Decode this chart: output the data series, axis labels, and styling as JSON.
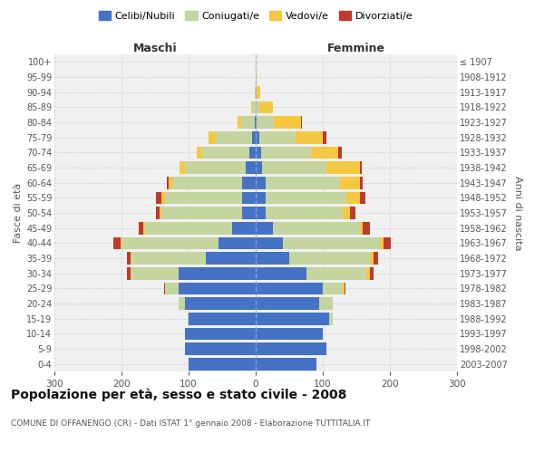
{
  "age_groups": [
    "0-4",
    "5-9",
    "10-14",
    "15-19",
    "20-24",
    "25-29",
    "30-34",
    "35-39",
    "40-44",
    "45-49",
    "50-54",
    "55-59",
    "60-64",
    "65-69",
    "70-74",
    "75-79",
    "80-84",
    "85-89",
    "90-94",
    "95-99",
    "100+"
  ],
  "birth_years": [
    "2003-2007",
    "1998-2002",
    "1993-1997",
    "1988-1992",
    "1983-1987",
    "1978-1982",
    "1973-1977",
    "1968-1972",
    "1963-1967",
    "1958-1962",
    "1953-1957",
    "1948-1952",
    "1943-1947",
    "1938-1942",
    "1933-1937",
    "1928-1932",
    "1923-1927",
    "1918-1922",
    "1913-1917",
    "1908-1912",
    "≤ 1907"
  ],
  "maschi": {
    "celibi": [
      100,
      105,
      105,
      100,
      105,
      115,
      115,
      75,
      55,
      35,
      20,
      20,
      20,
      15,
      10,
      5,
      2,
      0,
      0,
      0,
      0
    ],
    "coniugati": [
      0,
      0,
      0,
      2,
      10,
      20,
      70,
      110,
      145,
      130,
      120,
      115,
      105,
      90,
      70,
      55,
      20,
      5,
      2,
      0,
      0
    ],
    "vedovi": [
      0,
      0,
      0,
      0,
      0,
      0,
      2,
      2,
      2,
      2,
      3,
      5,
      5,
      8,
      8,
      10,
      5,
      2,
      0,
      0,
      0
    ],
    "divorziati": [
      0,
      0,
      0,
      0,
      0,
      2,
      5,
      5,
      10,
      8,
      5,
      8,
      3,
      0,
      0,
      0,
      0,
      0,
      0,
      0,
      0
    ]
  },
  "femmine": {
    "nubili": [
      90,
      105,
      100,
      110,
      95,
      100,
      75,
      50,
      40,
      25,
      15,
      15,
      15,
      10,
      8,
      5,
      2,
      0,
      0,
      0,
      0
    ],
    "coniugate": [
      0,
      0,
      0,
      5,
      20,
      30,
      90,
      120,
      145,
      130,
      115,
      120,
      110,
      95,
      75,
      55,
      25,
      5,
      2,
      0,
      0
    ],
    "vedove": [
      0,
      0,
      0,
      0,
      0,
      2,
      5,
      5,
      5,
      5,
      10,
      20,
      30,
      50,
      40,
      40,
      40,
      20,
      5,
      2,
      0
    ],
    "divorziate": [
      0,
      0,
      0,
      0,
      0,
      2,
      5,
      8,
      12,
      10,
      8,
      8,
      5,
      3,
      5,
      5,
      2,
      0,
      0,
      0,
      0
    ]
  },
  "colors": {
    "celibi_nubili": "#4472C4",
    "coniugati_e": "#C5D5A0",
    "vedovi_e": "#F5C842",
    "divorziati_e": "#C0392B"
  },
  "title": "Popolazione per età, sesso e stato civile - 2008",
  "subtitle": "COMUNE DI OFFANENGO (CR) - Dati ISTAT 1° gennaio 2008 - Elaborazione TUTTITALIA.IT",
  "xlabel_left": "Maschi",
  "xlabel_right": "Femmine",
  "ylabel_left": "Fasce di età",
  "ylabel_right": "Anni di nascita",
  "xlim": 300,
  "legend_labels": [
    "Celibi/Nubili",
    "Coniugati/e",
    "Vedovi/e",
    "Divorziati/e"
  ],
  "background_color": "#ffffff",
  "plot_bg_color": "#f0f0f0",
  "grid_color": "#cccccc"
}
